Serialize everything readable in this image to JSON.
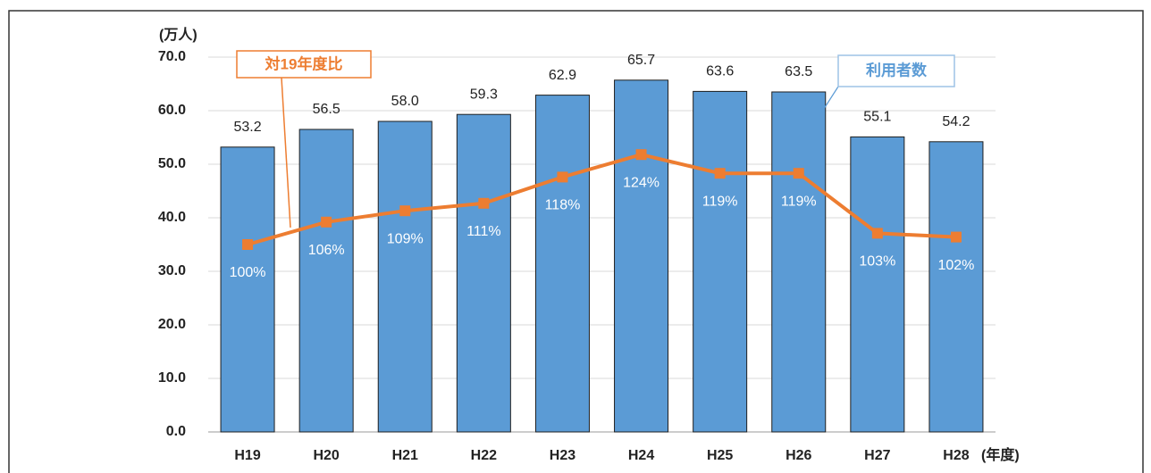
{
  "chart_data": {
    "type": "bar_line",
    "y_axis_label": "(万人)",
    "x_axis_label": "(年度)",
    "annotations": [
      "対19年度比",
      "利用者数"
    ],
    "categories": [
      "H19",
      "H20",
      "H21",
      "H22",
      "H23",
      "H24",
      "H25",
      "H26",
      "H27",
      "H28"
    ],
    "series": [
      {
        "name": "利用者数",
        "type": "bar",
        "color": "#5b9bd5",
        "values": [
          53.2,
          56.5,
          58.0,
          59.3,
          62.9,
          65.7,
          63.6,
          63.5,
          55.1,
          54.2
        ],
        "value_labels": [
          "53.2",
          "56.5",
          "58.0",
          "59.3",
          "62.9",
          "65.7",
          "63.6",
          "63.5",
          "55.1",
          "54.2"
        ]
      },
      {
        "name": "対19年度比",
        "type": "line",
        "color": "#ed7d31",
        "axis": "y2",
        "values": [
          100,
          106,
          109,
          111,
          118,
          124,
          119,
          119,
          103,
          102
        ],
        "value_labels": [
          "100%",
          "106%",
          "109%",
          "111%",
          "118%",
          "124%",
          "119%",
          "119%",
          "103%",
          "102%"
        ]
      }
    ],
    "ylim": [
      0,
      70
    ],
    "yticks": [
      {
        "value": 0,
        "label": "0.0"
      },
      {
        "value": 10,
        "label": "10.0"
      },
      {
        "value": 20,
        "label": "20.0"
      },
      {
        "value": 30,
        "label": "30.0"
      },
      {
        "value": 40,
        "label": "40.0"
      },
      {
        "value": 50,
        "label": "50.0"
      },
      {
        "value": 60,
        "label": "60.0"
      },
      {
        "value": 70,
        "label": "70.0"
      }
    ],
    "y2lim": [
      50,
      150
    ],
    "grid": true
  }
}
